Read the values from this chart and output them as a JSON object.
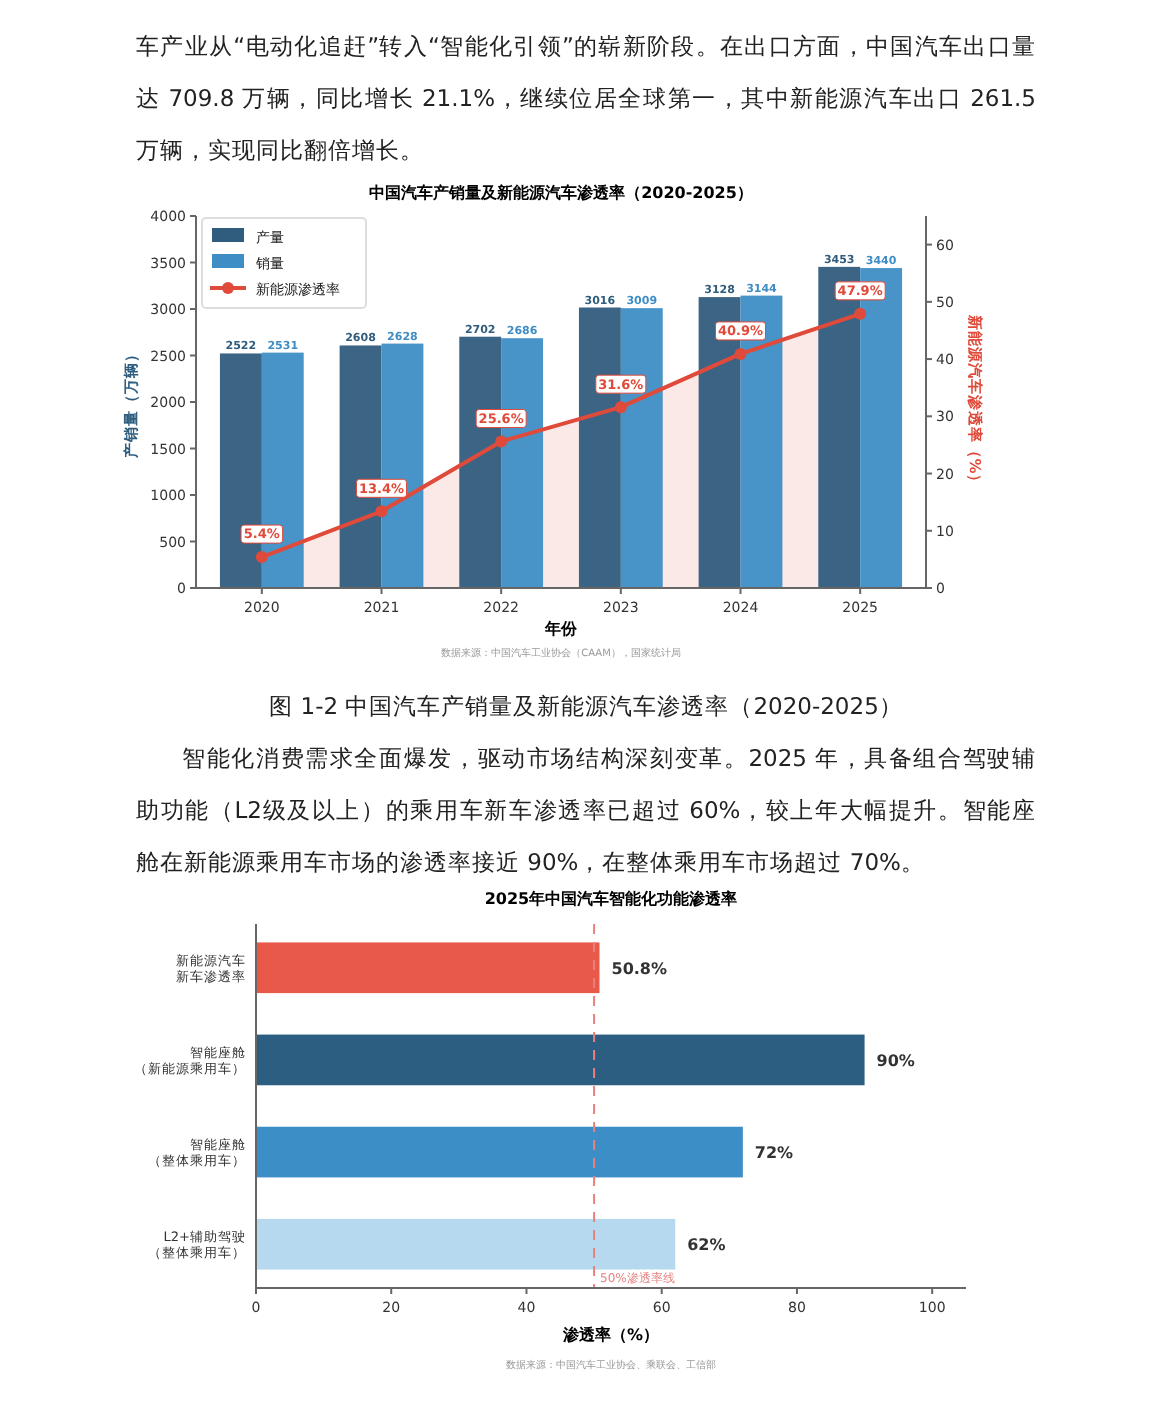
{
  "chart_data": [
    {
      "type": "bar",
      "title": "中国汽车产销量及新能源汽车渗透率（2020-2025）",
      "xlabel": "年份",
      "ylabel": "产销量（万辆）",
      "y2label": "新能源汽车渗透率（%）",
      "categories": [
        "2020",
        "2021",
        "2022",
        "2023",
        "2024",
        "2025"
      ],
      "series": [
        {
          "name": "产量",
          "color": "#305c7e",
          "values": [
            2522,
            2608,
            2702,
            3016,
            3128,
            3453
          ]
        },
        {
          "name": "销量",
          "color": "#3e8ec5",
          "values": [
            2531,
            2628,
            2686,
            3009,
            3144,
            3440
          ]
        },
        {
          "name": "新能源渗透率",
          "type": "area",
          "axis": "y2",
          "color": "#e04a3a",
          "values": [
            5.4,
            13.4,
            25.6,
            31.6,
            40.9,
            47.9
          ],
          "value_labels": [
            "5.4%",
            "13.4%",
            "25.6%",
            "31.6%",
            "40.9%",
            "47.9%"
          ]
        }
      ],
      "ylim": [
        0,
        4000
      ],
      "yticks": [
        0,
        500,
        1000,
        1500,
        2000,
        2500,
        3000,
        3500,
        4000
      ],
      "y2lim": [
        0,
        65
      ],
      "y2ticks": [
        0,
        10,
        20,
        30,
        40,
        50,
        60
      ],
      "data_labels": true,
      "legend": "top left",
      "marker": "circle",
      "grid": false,
      "annotations": [
        "车产业从“电动化追赶”转入“智能化引领”的崭新阶段。在出口方面，中国汽车出口量达 709.8 万辆，同比增长 21.1%，继续位居全球第一，其中新能源汽车出口 261.5 万辆，实现同比翻倍增长。",
        "数据来源：中国汽车工业协会（CAAM），国家统计局",
        "图 1-2 中国汽车产销量及新能源汽车渗透率（2020-2025）"
      ]
    },
    {
      "type": "bar",
      "orientation": "horizontal",
      "title": "2025年中国汽车智能化功能渗透率",
      "xlabel": "渗透率（%）",
      "categories": [
        "新能源汽车新车渗透率",
        "智能座舱（新能源乘用车）",
        "智能座舱（整体乘用车）",
        "L2+辅助驾驶（整体乘用车）"
      ],
      "values": [
        50.8,
        90,
        72,
        62
      ],
      "colors": [
        "#e8594a",
        "#2c5e81",
        "#3c8ec7",
        "#b6d9f0"
      ],
      "value_labels": [
        "50.8%",
        "90%",
        "72%",
        "62%"
      ],
      "xlim": [
        0,
        105
      ],
      "xticks": [
        0,
        20,
        40,
        60,
        80,
        100
      ],
      "ref_lines": [
        {
          "axis": "x",
          "value": 50,
          "label": "50%渗透率线",
          "color": "#e88080",
          "line_style": "dashed"
        }
      ],
      "annotations": [
        "智能化消费需求全面爆发，驱动市场结构深刻变革。2025 年，具备组合驾驶辅助功能（L2级及以上）的乘用车新车渗透率已超过 60%，较上年大幅提升。智能座舱在新能源乘用车市场的渗透率接近 90%，在整体乘用车市场超过 70%。",
        "数据来源：中国汽车工业协会、乘联会、工信部"
      ]
    }
  ]
}
